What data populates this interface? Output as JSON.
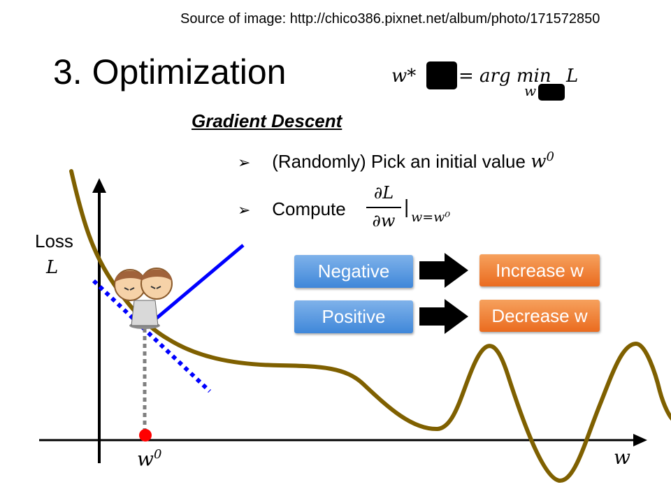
{
  "source_text": "Source of image: http://chico386.pixnet.net/album/photo/171572850",
  "title": "3. Optimization",
  "formula": {
    "w_star": "w*",
    "equals_argmin": "= arg min",
    "subscript_w": "w",
    "L": "L"
  },
  "subtitle": "Gradient Descent",
  "bullets": {
    "b1_text": "(Randomly) Pick an initial value",
    "b1_math": "w",
    "b1_sup": "0",
    "b2_text": "Compute",
    "frac_num": "∂L",
    "frac_den": "∂w",
    "eval": "|",
    "eval_sub": "w=w⁰"
  },
  "axes": {
    "loss_label": "Loss",
    "L_label": "L",
    "w_label": "w",
    "w0_label": "w",
    "w0_sup": "0"
  },
  "rules": [
    {
      "condition": "Negative",
      "action": "Increase w"
    },
    {
      "condition": "Positive",
      "action": "Decrease w"
    }
  ],
  "colors": {
    "curve": "#7f6000",
    "tangent": "#0000ff",
    "point": "#ff0000",
    "blue_button": "#5b9bd5",
    "orange_button": "#ed7d31"
  },
  "icons": [
    "bullet-arrow-icon",
    "cartoon-character-icon"
  ]
}
